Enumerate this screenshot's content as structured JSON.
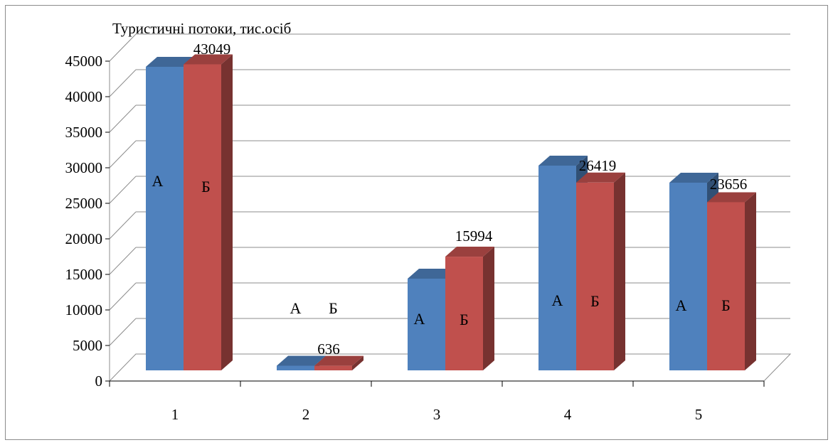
{
  "chart_data": {
    "type": "bar",
    "title": "Туристичні потоки,  тис.осіб",
    "categories": [
      "1",
      "2",
      "3",
      "4",
      "5"
    ],
    "series": [
      {
        "name": "A",
        "color": "#4f81bd",
        "values": [
          42700,
          650,
          12900,
          28800,
          26400
        ]
      },
      {
        "name": "Б",
        "color": "#c0504d",
        "values": [
          43049,
          636,
          15994,
          26419,
          23656
        ]
      }
    ],
    "bar_letters": [
      "А",
      "Б"
    ],
    "value_labels": [
      "43049",
      "636",
      "15994",
      "26419",
      "23656"
    ],
    "y_ticks": [
      "0",
      "5000",
      "10000",
      "15000",
      "20000",
      "25000",
      "30000",
      "35000",
      "40000",
      "45000"
    ],
    "ylim": [
      0,
      45000
    ],
    "grid": true,
    "legend": "none"
  }
}
